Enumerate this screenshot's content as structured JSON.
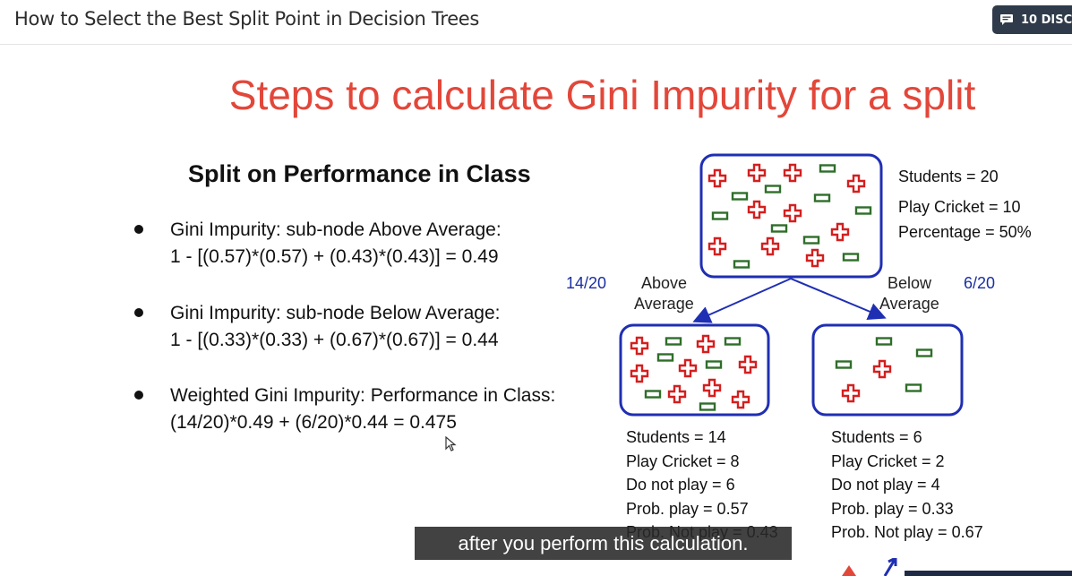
{
  "header": {
    "course_title": "How to Select the Best Split Point in Decision Trees",
    "discussion_label": "10 DISC"
  },
  "slide": {
    "title": "Steps to calculate Gini Impurity for a split",
    "subtitle": "Split on Performance in Class",
    "bullets": [
      {
        "line1": "Gini Impurity: sub-node Above Average:",
        "line2": "1 - [(0.57)*(0.57) + (0.43)*(0.43)] = 0.49"
      },
      {
        "line1": "Gini Impurity: sub-node Below Average:",
        "line2": "1 - [(0.33)*(0.33) + (0.67)*(0.67)] = 0.44"
      },
      {
        "line1": "Weighted Gini Impurity: Performance in Class:",
        "line2": "(14/20)*0.49 + (6/20)*0.44 = 0.475"
      }
    ],
    "root_stats": [
      "Students = 20",
      "Play Cricket = 10",
      "Percentage = 50%"
    ],
    "left_node": {
      "fraction": "14/20",
      "label_line1": "Above",
      "label_line2": "Average",
      "stats": [
        "Students = 14",
        "Play Cricket = 8",
        "Do not play = 6",
        "Prob. play = 0.57",
        "Prob. Not play = 0.43"
      ]
    },
    "right_node": {
      "fraction": "6/20",
      "label_line1": "Below",
      "label_line2": "Average",
      "stats": [
        "Students = 6",
        "Play Cricket = 2",
        "Do not play = 4",
        "Prob. play = 0.33",
        "Prob. Not play = 0.67"
      ]
    }
  },
  "caption": "after you perform this calculation.",
  "colors": {
    "title_red": "#e2473a",
    "node_border": "#1f2fb3",
    "plus_red": "#d41f1f",
    "minus_green": "#2f6e2a",
    "header_button": "#2f3b4a"
  },
  "icons": {
    "discussion": "chat-bubble-icon",
    "cursor": "mouse-pointer-icon",
    "plus": "plus-symbol-icon",
    "minus": "minus-symbol-icon"
  }
}
